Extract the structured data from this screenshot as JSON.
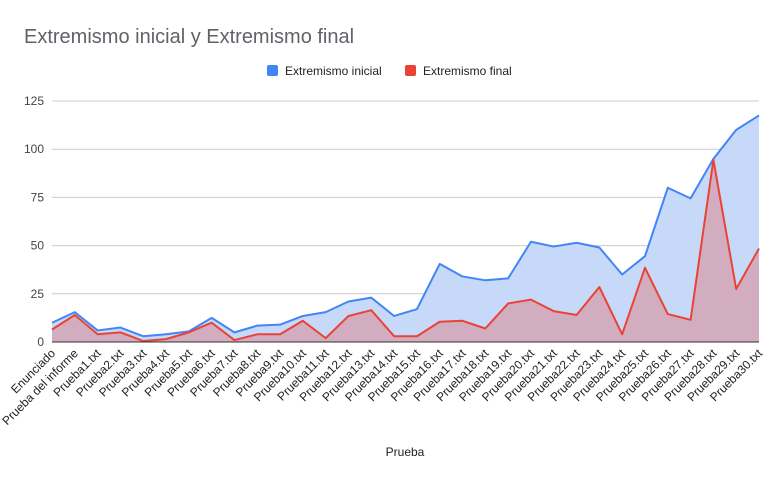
{
  "chart_data": {
    "type": "area",
    "title": "Extremismo inicial y Extremismo final",
    "xlabel": "Prueba",
    "ylabel": "",
    "ylim": [
      0,
      125
    ],
    "yticks": [
      0,
      25,
      50,
      75,
      100,
      125
    ],
    "grid": true,
    "legend_position": "top",
    "categories": [
      "Enunciado",
      "Prueba del informe",
      "Prueba1.txt",
      "Prueba2.txt",
      "Prueba3.txt",
      "Prueba4.txt",
      "Prueba5.txt",
      "Prueba6.txt",
      "Prueba7.txt",
      "Prueba8.txt",
      "Prueba9.txt",
      "Prueba10.txt",
      "Prueba11.txt",
      "Prueba12.txt",
      "Prueba13.txt",
      "Prueba14.txt",
      "Prueba15.txt",
      "Prueba16.txt",
      "Prueba17.txt",
      "Prueba18.txt",
      "Prueba19.txt",
      "Prueba20.txt",
      "Prueba21.txt",
      "Prueba22.txt",
      "Prueba23.txt",
      "Prueba24.txt",
      "Prueba25.txt",
      "Prueba26.txt",
      "Prueba27.txt",
      "Prueba28.txt",
      "Prueba29.txt",
      "Prueba30.txt"
    ],
    "series": [
      {
        "name": "Extremismo inicial",
        "color": "#4285f4",
        "fill": "#c6d9f8",
        "values": [
          10,
          15.5,
          6,
          7.5,
          3,
          4,
          5.5,
          12.5,
          5,
          8.5,
          9,
          13.5,
          15.5,
          21,
          23,
          13.5,
          17,
          40.5,
          34,
          32,
          33,
          52,
          49.5,
          51.5,
          49,
          35,
          44.5,
          80,
          74.5,
          95,
          110,
          117.5
        ]
      },
      {
        "name": "Extremismo final",
        "color": "#ea4335",
        "fill": "#d4a3b5",
        "values": [
          6.5,
          14,
          4,
          5,
          0.5,
          1.5,
          5,
          10,
          1,
          4,
          4,
          11,
          2,
          13.5,
          16.5,
          3,
          3,
          10.5,
          11,
          7,
          20,
          22,
          16,
          14,
          28.5,
          4,
          38.5,
          14.5,
          11.5,
          94.5,
          27.5,
          48.5
        ]
      }
    ]
  }
}
